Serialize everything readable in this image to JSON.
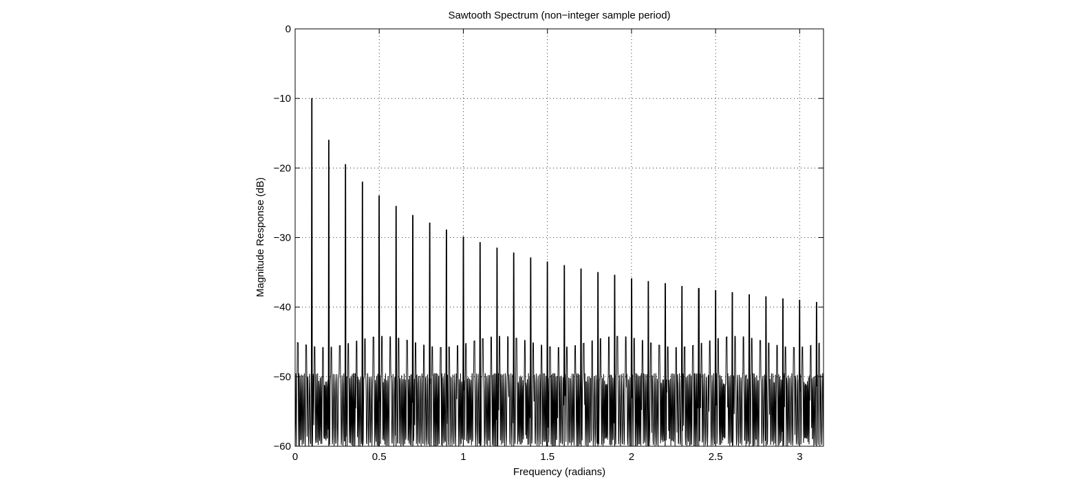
{
  "chart_data": {
    "type": "line",
    "title": "Sawtooth Spectrum (non−integer sample period)",
    "xlabel": "Frequency (radians)",
    "ylabel": "Magnitude Response (dB)",
    "xlim": [
      0,
      3.1416
    ],
    "ylim": [
      -60,
      0
    ],
    "xticks": [
      0,
      0.5,
      1,
      1.5,
      2,
      2.5,
      3
    ],
    "xtick_labels": [
      "0",
      "0.5",
      "1",
      "1.5",
      "2",
      "2.5",
      "3"
    ],
    "yticks": [
      0,
      -10,
      -20,
      -30,
      -40,
      -50,
      -60
    ],
    "ytick_labels": [
      "0",
      "−10",
      "−20",
      "−30",
      "−40",
      "−50",
      "−60"
    ],
    "grid": true,
    "grid_style": "dotted",
    "line_color": "#000000",
    "series": [
      {
        "x": [
          0.1,
          0.2,
          0.3,
          0.4,
          0.5,
          0.6,
          0.7,
          0.8,
          0.9,
          1.0,
          1.1,
          1.2,
          1.3,
          1.4,
          1.5,
          1.6,
          1.7,
          1.8,
          1.9,
          2.0,
          2.1,
          2.2,
          2.3,
          2.4,
          2.5,
          2.6,
          2.7,
          2.8,
          2.9,
          3.0,
          3.1
        ],
        "values": [
          -10,
          -16,
          -19.5,
          -22,
          -24,
          -25.5,
          -26.8,
          -27.9,
          -28.9,
          -29.9,
          -30.7,
          -31.5,
          -32.2,
          -32.9,
          -33.5,
          -34.0,
          -34.5,
          -35.0,
          -35.4,
          -35.9,
          -36.3,
          -36.6,
          -37.0,
          -37.3,
          -37.6,
          -37.9,
          -38.2,
          -38.5,
          -38.8,
          -39.0,
          -39.3
        ]
      }
    ]
  }
}
